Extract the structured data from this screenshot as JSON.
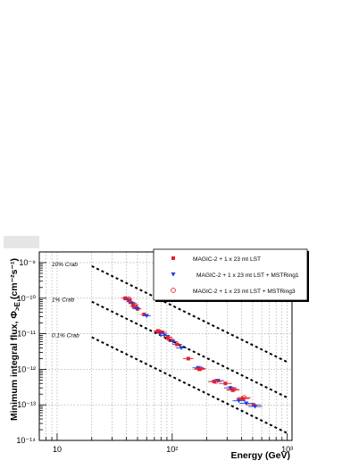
{
  "chart_data": {
    "type": "scatter",
    "title": "",
    "xlabel": "Energy (GeV)",
    "ylabel": "Minimum integral flux, Φ",
    "ylabel_sub": ">E",
    "ylabel_unit": " (cm⁻²s⁻¹)",
    "x_scale": "log",
    "y_scale": "log",
    "xlim": [
      7,
      1100
    ],
    "ylim": [
      1e-14,
      2e-09
    ],
    "grid": true,
    "x_ticks": [
      {
        "value": 10,
        "label": "10"
      },
      {
        "value": 100,
        "label": "10²"
      },
      {
        "value": 1000,
        "label": "10³"
      }
    ],
    "y_ticks": [
      {
        "value": 1e-14,
        "label": "10⁻¹⁴"
      },
      {
        "value": 1e-13,
        "label": "10⁻¹³"
      },
      {
        "value": 1e-12,
        "label": "10⁻¹²"
      },
      {
        "value": 1e-11,
        "label": "10⁻¹¹"
      },
      {
        "value": 1e-10,
        "label": "10⁻¹⁰"
      },
      {
        "value": 1e-09,
        "label": "10⁻⁹"
      }
    ],
    "legend_position": "top-right",
    "reference_lines": [
      {
        "name": "10% Crab",
        "x": [
          20,
          1000
        ],
        "y": [
          8e-10,
          1.6e-12
        ]
      },
      {
        "name": "1% Crab",
        "x": [
          20,
          1000
        ],
        "y": [
          8e-11,
          1.6e-13
        ]
      },
      {
        "name": "0.1% Crab",
        "x": [
          20,
          1000
        ],
        "y": [
          8e-12,
          1.6e-14
        ]
      }
    ],
    "series": [
      {
        "name": "MAGIC-2 + 1 x 23 mt LST",
        "marker": "square",
        "color": "#e8202a",
        "points": [
          {
            "x": 39,
            "y": 1e-10,
            "xlo": 36,
            "xhi": 42
          },
          {
            "x": 43,
            "y": 8e-11,
            "xlo": 40,
            "xhi": 46
          },
          {
            "x": 46,
            "y": 6e-11,
            "xlo": 43,
            "xhi": 50
          },
          {
            "x": 50,
            "y": 5e-11,
            "xlo": 46,
            "xhi": 54
          },
          {
            "x": 57,
            "y": 3.5e-11,
            "xlo": 53,
            "xhi": 62
          },
          {
            "x": 75,
            "y": 1.2e-11,
            "xlo": 69,
            "xhi": 82
          },
          {
            "x": 82,
            "y": 1.1e-11,
            "xlo": 75,
            "xhi": 90
          },
          {
            "x": 92,
            "y": 8e-12,
            "xlo": 84,
            "xhi": 100
          },
          {
            "x": 110,
            "y": 5e-12,
            "xlo": 100,
            "xhi": 122
          },
          {
            "x": 138,
            "y": 2e-12,
            "xlo": 124,
            "xhi": 153
          },
          {
            "x": 172,
            "y": 1e-12,
            "xlo": 155,
            "xhi": 192
          },
          {
            "x": 232,
            "y": 4.5e-13,
            "xlo": 205,
            "xhi": 262
          },
          {
            "x": 290,
            "y": 4e-13,
            "xlo": 255,
            "xhi": 330
          },
          {
            "x": 335,
            "y": 2.6e-13,
            "xlo": 295,
            "xhi": 380
          },
          {
            "x": 410,
            "y": 1.5e-13,
            "xlo": 360,
            "xhi": 470
          },
          {
            "x": 510,
            "y": 1e-13,
            "xlo": 445,
            "xhi": 590
          }
        ]
      },
      {
        "name": "MAGIC-2 + 1 x 23 mt LST + MSTRing1",
        "marker": "triangle-down",
        "color": "#1f3fe0",
        "points": [
          {
            "x": 41,
            "y": 9e-11,
            "xlo": 38,
            "xhi": 44
          },
          {
            "x": 45,
            "y": 7e-11,
            "xlo": 42,
            "xhi": 48
          },
          {
            "x": 49,
            "y": 5.2e-11,
            "xlo": 45,
            "xhi": 53
          },
          {
            "x": 60,
            "y": 3.2e-11,
            "xlo": 55,
            "xhi": 65
          },
          {
            "x": 79,
            "y": 1.05e-11,
            "xlo": 72,
            "xhi": 86
          },
          {
            "x": 86,
            "y": 9e-12,
            "xlo": 78,
            "xhi": 95
          },
          {
            "x": 102,
            "y": 6e-12,
            "xlo": 93,
            "xhi": 112
          },
          {
            "x": 120,
            "y": 4e-12,
            "xlo": 108,
            "xhi": 134
          },
          {
            "x": 168,
            "y": 1.1e-12,
            "xlo": 150,
            "xhi": 188
          },
          {
            "x": 250,
            "y": 4.8e-13,
            "xlo": 222,
            "xhi": 283
          },
          {
            "x": 320,
            "y": 3e-13,
            "xlo": 282,
            "xhi": 365
          },
          {
            "x": 380,
            "y": 1.3e-13,
            "xlo": 335,
            "xhi": 435
          },
          {
            "x": 440,
            "y": 1.1e-13,
            "xlo": 385,
            "xhi": 505
          },
          {
            "x": 525,
            "y": 9e-14,
            "xlo": 460,
            "xhi": 605
          }
        ]
      },
      {
        "name": "MAGIC-2 + 1 x 23 mt LST + MSTRing3",
        "marker": "circle-open",
        "color": "#e8202a",
        "points": [
          {
            "x": 42,
            "y": 9.5e-11,
            "xlo": 39,
            "xhi": 45
          },
          {
            "x": 47,
            "y": 6.5e-11,
            "xlo": 44,
            "xhi": 51
          },
          {
            "x": 77,
            "y": 1.15e-11,
            "xlo": 71,
            "xhi": 84
          },
          {
            "x": 95,
            "y": 7e-12,
            "xlo": 87,
            "xhi": 104
          },
          {
            "x": 175,
            "y": 1.05e-12,
            "xlo": 157,
            "xhi": 195
          },
          {
            "x": 240,
            "y": 4.6e-13,
            "xlo": 213,
            "xhi": 270
          },
          {
            "x": 340,
            "y": 2.7e-13,
            "xlo": 300,
            "xhi": 385
          },
          {
            "x": 420,
            "y": 1.6e-13,
            "xlo": 370,
            "xhi": 480
          }
        ]
      }
    ]
  }
}
